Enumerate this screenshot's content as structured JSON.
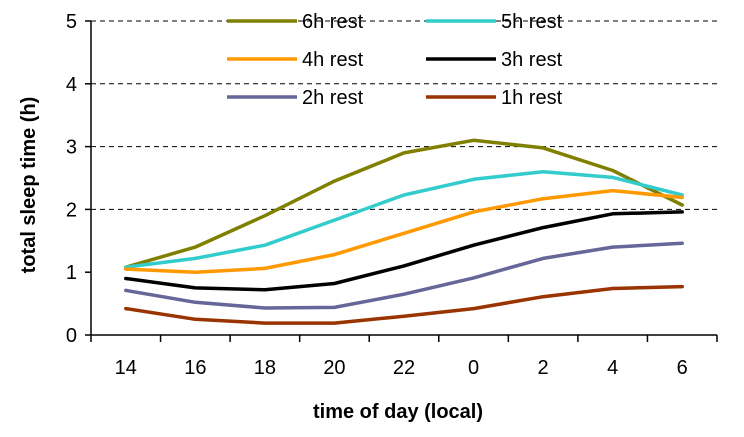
{
  "chart_data": {
    "type": "line",
    "title": "",
    "xlabel": "time of day (local)",
    "ylabel": "total sleep time (h)",
    "x": [
      "14",
      "16",
      "18",
      "20",
      "22",
      "0",
      "2",
      "4",
      "6"
    ],
    "ylim": [
      0,
      5
    ],
    "yticks": [
      0,
      1,
      2,
      3,
      4,
      5
    ],
    "grid": "horizontal dashed gridlines at 2, 3, 4, 5",
    "legend_position": "top",
    "series": [
      {
        "name": "6h rest",
        "color": "#808000",
        "values": [
          1.08,
          1.4,
          1.9,
          2.45,
          2.9,
          3.1,
          2.98,
          2.62,
          2.07
        ]
      },
      {
        "name": "5h rest",
        "color": "#33CCCC",
        "values": [
          1.08,
          1.22,
          1.43,
          1.83,
          2.23,
          2.48,
          2.6,
          2.51,
          2.23
        ]
      },
      {
        "name": "4h rest",
        "color": "#FF9900",
        "values": [
          1.05,
          1.0,
          1.06,
          1.28,
          1.62,
          1.96,
          2.17,
          2.3,
          2.19
        ]
      },
      {
        "name": "3h rest",
        "color": "#000000",
        "values": [
          0.9,
          0.75,
          0.72,
          0.82,
          1.1,
          1.43,
          1.71,
          1.93,
          1.96
        ]
      },
      {
        "name": "2h rest",
        "color": "#666699",
        "values": [
          0.71,
          0.52,
          0.43,
          0.44,
          0.65,
          0.91,
          1.22,
          1.4,
          1.46
        ]
      },
      {
        "name": "1h rest",
        "color": "#993300",
        "values": [
          0.42,
          0.25,
          0.19,
          0.19,
          0.3,
          0.42,
          0.61,
          0.74,
          0.77
        ]
      }
    ]
  }
}
